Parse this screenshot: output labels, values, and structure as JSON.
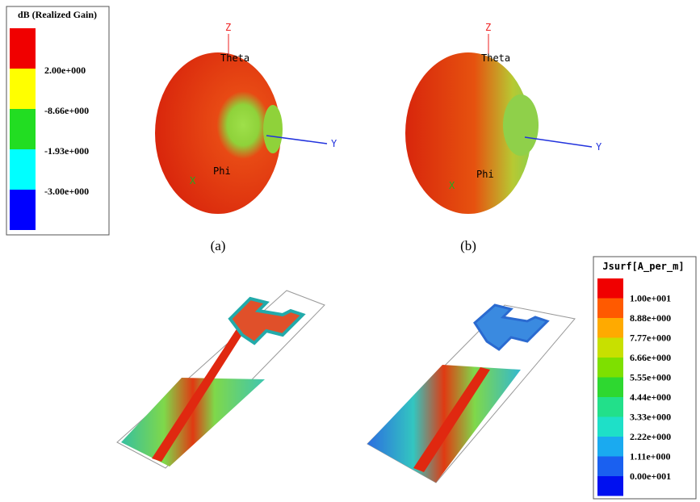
{
  "figure": {
    "gain_legend": {
      "title": "dB (Realized Gain)",
      "labels": [
        "2.00e+000",
        "-8.66e+000",
        "-1.93e+000",
        "-3.00e+000"
      ]
    },
    "patterns": [
      {
        "axes": {
          "z": "Z",
          "theta": "Theta",
          "y": "Y",
          "phi": "Phi",
          "x": "X"
        },
        "caption": "(a)"
      },
      {
        "axes": {
          "z": "Z",
          "theta": "Theta",
          "y": "Y",
          "phi": "Phi",
          "x": "X"
        },
        "caption": "(b)"
      }
    ],
    "current_legend": {
      "title": "Jsurf[A_per_m]",
      "labels": [
        "1.00e+001",
        "8.88e+000",
        "7.77e+000",
        "6.66e+000",
        "5.55e+000",
        "4.44e+000",
        "3.33e+000",
        "2.22e+000",
        "1.11e+000",
        "0.00e+001"
      ]
    }
  }
}
